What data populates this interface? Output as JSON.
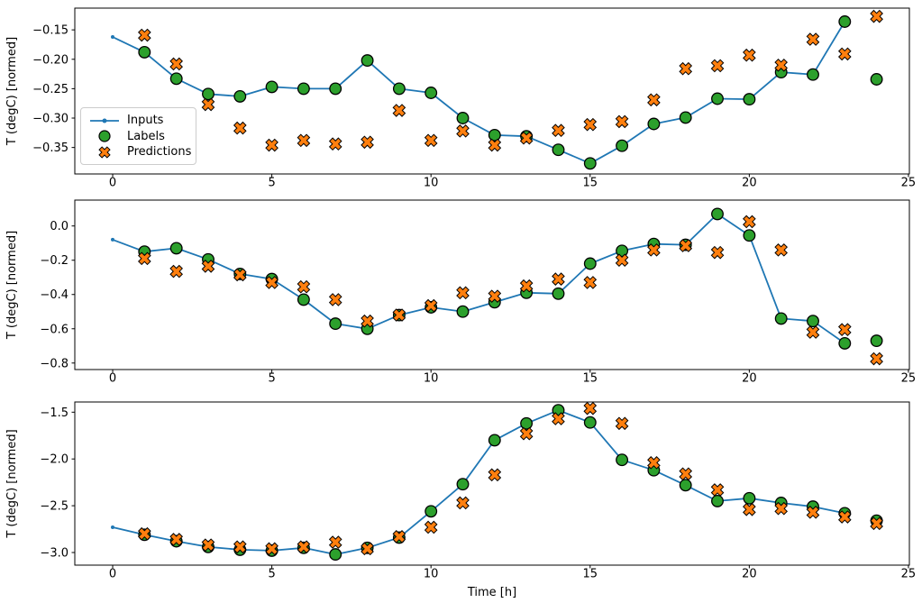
{
  "figure": {
    "xlabel": "Time [h]",
    "ylabel": "T (degC) [normed]",
    "background": "#ffffff",
    "colors": {
      "inputs": "#1f77b4",
      "labels": "#2ca02c",
      "predictions": "#ff7f0e",
      "marker_edge": "#000000",
      "spine": "#000000",
      "text": "#000000",
      "legend_border": "#cccccc"
    },
    "legend": {
      "position": "upper-left-of-first-subplot",
      "items": [
        {
          "label": "Inputs"
        },
        {
          "label": "Labels"
        },
        {
          "label": "Predictions"
        }
      ]
    }
  },
  "chart_data": [
    {
      "type": "line",
      "ylabel": "T (degC) [normed]",
      "xlim": [
        -1.19,
        25.03
      ],
      "ylim": [
        -0.395,
        -0.113
      ],
      "xticks": [
        0,
        5,
        10,
        15,
        20,
        25
      ],
      "xtick_labels": [
        "0",
        "5",
        "10",
        "15",
        "20",
        "25"
      ],
      "yticks": [
        -0.15,
        -0.2,
        -0.25,
        -0.3,
        -0.35
      ],
      "ytick_labels": [
        "−0.15",
        "−0.20",
        "−0.25",
        "−0.30",
        "−0.35"
      ],
      "grid": false,
      "series": [
        {
          "name": "Inputs",
          "style": "line+dot",
          "color": "#1f77b4",
          "x": [
            0,
            1,
            2,
            3,
            4,
            5,
            6,
            7,
            8,
            9,
            10,
            11,
            12,
            13,
            14,
            15,
            16,
            17,
            18,
            19,
            20,
            21,
            22,
            23
          ],
          "y": [
            -0.162,
            -0.188,
            -0.233,
            -0.259,
            -0.263,
            -0.247,
            -0.25,
            -0.25,
            -0.202,
            -0.25,
            -0.257,
            -0.3,
            -0.329,
            -0.331,
            -0.354,
            -0.377,
            -0.347,
            -0.31,
            -0.299,
            -0.267,
            -0.268,
            -0.222,
            -0.226,
            -0.136
          ]
        },
        {
          "name": "Labels",
          "style": "circle",
          "color": "#2ca02c",
          "x": [
            1,
            2,
            3,
            4,
            5,
            6,
            7,
            8,
            9,
            10,
            11,
            12,
            13,
            14,
            15,
            16,
            17,
            18,
            19,
            20,
            21,
            22,
            23,
            24
          ],
          "y": [
            -0.188,
            -0.233,
            -0.259,
            -0.263,
            -0.247,
            -0.25,
            -0.25,
            -0.202,
            -0.25,
            -0.257,
            -0.3,
            -0.329,
            -0.331,
            -0.354,
            -0.377,
            -0.347,
            -0.31,
            -0.299,
            -0.267,
            -0.268,
            -0.222,
            -0.226,
            -0.136,
            -0.234
          ]
        },
        {
          "name": "Predictions",
          "style": "X",
          "color": "#ff7f0e",
          "x": [
            1,
            2,
            3,
            4,
            5,
            6,
            7,
            8,
            9,
            10,
            11,
            12,
            13,
            14,
            15,
            16,
            17,
            18,
            19,
            20,
            21,
            22,
            23,
            24
          ],
          "y": [
            -0.159,
            -0.208,
            -0.277,
            -0.317,
            -0.346,
            -0.338,
            -0.344,
            -0.341,
            -0.287,
            -0.338,
            -0.322,
            -0.346,
            -0.334,
            -0.321,
            -0.311,
            -0.306,
            -0.269,
            -0.216,
            -0.211,
            -0.193,
            -0.21,
            -0.166,
            -0.191,
            -0.127
          ]
        }
      ]
    },
    {
      "type": "line",
      "ylabel": "T (degC) [normed]",
      "xlim": [
        -1.19,
        25.03
      ],
      "ylim": [
        -0.838,
        0.151
      ],
      "xticks": [
        0,
        5,
        10,
        15,
        20,
        25
      ],
      "xtick_labels": [
        "0",
        "5",
        "10",
        "15",
        "20",
        "25"
      ],
      "yticks": [
        0.0,
        -0.2,
        -0.4,
        -0.6,
        -0.8
      ],
      "ytick_labels": [
        "0.0",
        "−0.2",
        "−0.4",
        "−0.6",
        "−0.8"
      ],
      "grid": false,
      "series": [
        {
          "name": "Inputs",
          "style": "line+dot",
          "color": "#1f77b4",
          "x": [
            0,
            1,
            2,
            3,
            4,
            5,
            6,
            7,
            8,
            9,
            10,
            11,
            12,
            13,
            14,
            15,
            16,
            17,
            18,
            19,
            20,
            21,
            22,
            23
          ],
          "y": [
            -0.08,
            -0.15,
            -0.13,
            -0.195,
            -0.28,
            -0.31,
            -0.43,
            -0.57,
            -0.6,
            -0.52,
            -0.475,
            -0.5,
            -0.445,
            -0.39,
            -0.395,
            -0.22,
            -0.145,
            -0.105,
            -0.11,
            0.07,
            -0.055,
            -0.54,
            -0.555,
            -0.685
          ]
        },
        {
          "name": "Labels",
          "style": "circle",
          "color": "#2ca02c",
          "x": [
            1,
            2,
            3,
            4,
            5,
            6,
            7,
            8,
            9,
            10,
            11,
            12,
            13,
            14,
            15,
            16,
            17,
            18,
            19,
            20,
            21,
            22,
            23,
            24
          ],
          "y": [
            -0.15,
            -0.13,
            -0.195,
            -0.28,
            -0.31,
            -0.43,
            -0.57,
            -0.6,
            -0.52,
            -0.475,
            -0.5,
            -0.445,
            -0.39,
            -0.395,
            -0.22,
            -0.145,
            -0.105,
            -0.11,
            0.07,
            -0.055,
            -0.54,
            -0.555,
            -0.685,
            -0.67
          ]
        },
        {
          "name": "Predictions",
          "style": "X",
          "color": "#ff7f0e",
          "x": [
            1,
            2,
            3,
            4,
            5,
            6,
            7,
            8,
            9,
            10,
            11,
            12,
            13,
            14,
            15,
            16,
            17,
            18,
            19,
            20,
            21,
            22,
            23,
            24
          ],
          "y": [
            -0.19,
            -0.265,
            -0.235,
            -0.285,
            -0.33,
            -0.355,
            -0.43,
            -0.555,
            -0.52,
            -0.465,
            -0.39,
            -0.41,
            -0.35,
            -0.31,
            -0.33,
            -0.2,
            -0.14,
            -0.115,
            -0.155,
            0.025,
            -0.14,
            -0.62,
            -0.605,
            -0.775
          ]
        }
      ]
    },
    {
      "type": "line",
      "ylabel": "T (degC) [normed]",
      "xlim": [
        -1.19,
        25.03
      ],
      "ylim": [
        -3.135,
        -1.391
      ],
      "xticks": [
        0,
        5,
        10,
        15,
        20,
        25
      ],
      "xtick_labels": [
        "0",
        "5",
        "10",
        "15",
        "20",
        "25"
      ],
      "yticks": [
        -1.5,
        -2.0,
        -2.5,
        -3.0
      ],
      "ytick_labels": [
        "−1.5",
        "−2.0",
        "−2.5",
        "−3.0"
      ],
      "grid": false,
      "series": [
        {
          "name": "Inputs",
          "style": "line+dot",
          "color": "#1f77b4",
          "x": [
            0,
            1,
            2,
            3,
            4,
            5,
            6,
            7,
            8,
            9,
            10,
            11,
            12,
            13,
            14,
            15,
            16,
            17,
            18,
            19,
            20,
            21,
            22,
            23
          ],
          "y": [
            -2.73,
            -2.81,
            -2.88,
            -2.94,
            -2.97,
            -2.98,
            -2.95,
            -3.02,
            -2.95,
            -2.84,
            -2.56,
            -2.27,
            -1.8,
            -1.62,
            -1.48,
            -1.61,
            -2.01,
            -2.12,
            -2.28,
            -2.45,
            -2.42,
            -2.47,
            -2.51,
            -2.58
          ]
        },
        {
          "name": "Labels",
          "style": "circle",
          "color": "#2ca02c",
          "x": [
            1,
            2,
            3,
            4,
            5,
            6,
            7,
            8,
            9,
            10,
            11,
            12,
            13,
            14,
            15,
            16,
            17,
            18,
            19,
            20,
            21,
            22,
            23,
            24
          ],
          "y": [
            -2.81,
            -2.88,
            -2.94,
            -2.97,
            -2.98,
            -2.95,
            -3.02,
            -2.95,
            -2.84,
            -2.56,
            -2.27,
            -1.8,
            -1.62,
            -1.48,
            -1.61,
            -2.01,
            -2.12,
            -2.28,
            -2.45,
            -2.42,
            -2.47,
            -2.51,
            -2.58,
            -2.66
          ]
        },
        {
          "name": "Predictions",
          "style": "X",
          "color": "#ff7f0e",
          "x": [
            1,
            2,
            3,
            4,
            5,
            6,
            7,
            8,
            9,
            10,
            11,
            12,
            13,
            14,
            15,
            16,
            17,
            18,
            19,
            20,
            21,
            22,
            23,
            24
          ],
          "y": [
            -2.8,
            -2.86,
            -2.92,
            -2.94,
            -2.96,
            -2.94,
            -2.89,
            -2.96,
            -2.83,
            -2.73,
            -2.47,
            -2.17,
            -1.73,
            -1.57,
            -1.46,
            -1.62,
            -2.04,
            -2.16,
            -2.33,
            -2.54,
            -2.53,
            -2.57,
            -2.62,
            -2.69
          ]
        }
      ]
    }
  ]
}
